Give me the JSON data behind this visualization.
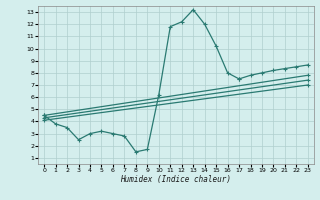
{
  "xlabel": "Humidex (Indice chaleur)",
  "xlim": [
    -0.5,
    23.5
  ],
  "ylim": [
    0.5,
    13.5
  ],
  "xticks": [
    0,
    1,
    2,
    3,
    4,
    5,
    6,
    7,
    8,
    9,
    10,
    11,
    12,
    13,
    14,
    15,
    16,
    17,
    18,
    19,
    20,
    21,
    22,
    23
  ],
  "yticks": [
    1,
    2,
    3,
    4,
    5,
    6,
    7,
    8,
    9,
    10,
    11,
    12,
    13
  ],
  "bg_color": "#d4eeed",
  "grid_color": "#b0cfce",
  "line_color": "#2a7a72",
  "line_width": 0.9,
  "marker": "+",
  "marker_size": 3.5,
  "marker_edge_width": 0.8,
  "curves": [
    {
      "x": [
        0,
        1,
        2,
        3,
        4,
        5,
        6,
        7,
        8,
        9,
        10,
        11,
        12,
        13,
        14,
        15,
        16,
        17
      ],
      "y": [
        4.5,
        3.8,
        3.5,
        2.5,
        3.0,
        3.2,
        3.0,
        2.8,
        1.5,
        1.7,
        6.2,
        11.8,
        12.2,
        13.2,
        12.0,
        10.2,
        8.0,
        7.5
      ]
    },
    {
      "x": [
        17,
        18,
        19,
        20,
        21,
        22,
        23
      ],
      "y": [
        7.5,
        7.8,
        8.0,
        8.2,
        8.35,
        8.5,
        8.65
      ]
    },
    {
      "x": [
        0,
        23
      ],
      "y": [
        4.5,
        7.8
      ]
    },
    {
      "x": [
        0,
        23
      ],
      "y": [
        4.3,
        7.4
      ]
    },
    {
      "x": [
        0,
        23
      ],
      "y": [
        4.1,
        7.0
      ]
    }
  ]
}
